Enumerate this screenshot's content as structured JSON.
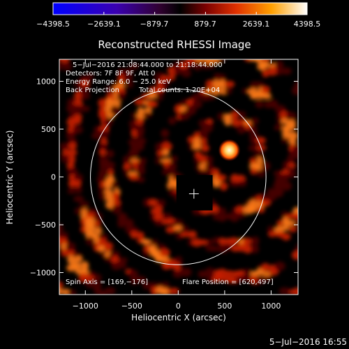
{
  "colorbar": {
    "tick_labels": [
      "−4398.5",
      "−2639.1",
      "−879.7",
      "879.7",
      "2639.1",
      "4398.5"
    ],
    "range": [
      -4398.5,
      4398.5
    ],
    "colormap": "blue-white-red"
  },
  "title": "Reconstructed RHESSI Image",
  "info": {
    "time_range": "5−Jul−2016 21:08:44.000 to 21:18:44.000",
    "detectors": "Detectors: 7F 8F 9F, Att 0",
    "energy": "Energy Range: 6.0 − 25.0 keV",
    "method": "Back Projection",
    "counts": "Total counts: 1.20E+04",
    "spin_axis": "Spin Axis = [169,−176]",
    "flare_position": "Flare Position = [620,497]"
  },
  "timestamp": "5−Jul−2016 16:55",
  "chart_data": {
    "type": "heatmap",
    "title": "Reconstructed RHESSI Image",
    "xlabel": "Heliocentric X (arcsec)",
    "ylabel": "Heliocentric Y (arcsec)",
    "xlim": [
      -1280,
      1290
    ],
    "ylim": [
      -1230,
      1230
    ],
    "xticks": [
      {
        "value": -1000,
        "label": "−1000"
      },
      {
        "value": -500,
        "label": "−500"
      },
      {
        "value": 0,
        "label": "0"
      },
      {
        "value": 500,
        "label": "500"
      },
      {
        "value": 1000,
        "label": "1000"
      }
    ],
    "yticks": [
      {
        "value": 1000,
        "label": "1000"
      },
      {
        "value": 500,
        "label": "500"
      },
      {
        "value": 0,
        "label": "0"
      },
      {
        "value": -500,
        "label": "−500"
      },
      {
        "value": -1000,
        "label": "−1000"
      }
    ],
    "solar_limb": {
      "center": [
        0,
        0
      ],
      "radius_arcsec": 945
    },
    "bright_source": {
      "x": 550,
      "y": 280
    },
    "masked_box": {
      "x_range": [
        -20,
        370
      ],
      "y_range": [
        -350,
        20
      ]
    },
    "crosshair": {
      "x": 169,
      "y": -176
    },
    "colors": {
      "background": "#000000",
      "fringe_dark": "#4a0000",
      "fringe_mid": "#c81e00",
      "fringe_bright": "#ff7a1a",
      "peak": "#fffde0",
      "limb": "#ffffff"
    }
  }
}
